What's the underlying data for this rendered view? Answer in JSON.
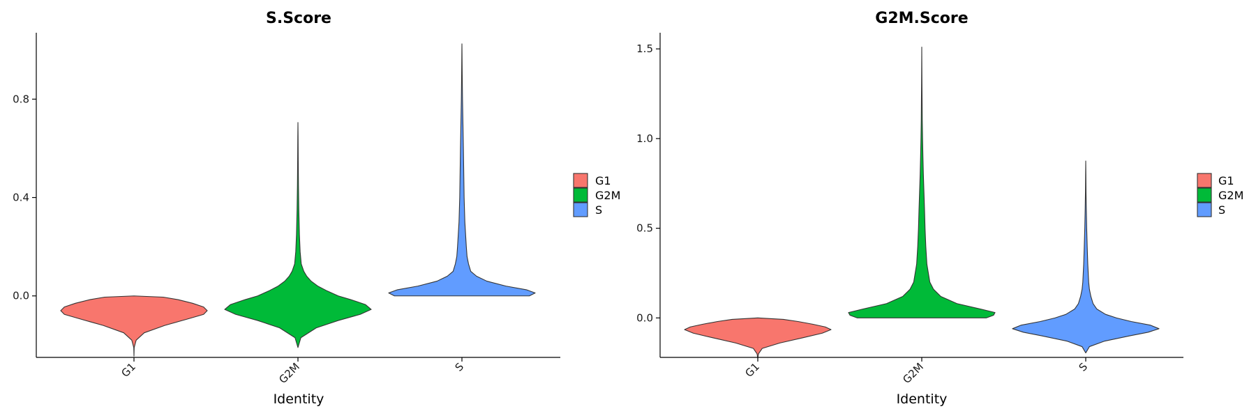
{
  "chart_data": [
    {
      "type": "violin",
      "title": "S.Score",
      "xlabel": "Identity",
      "ylabel": "",
      "ylim": [
        -0.25,
        1.07
      ],
      "yticks": [
        0.0,
        0.4,
        0.8
      ],
      "ytick_labels": [
        "0.0",
        "0.4",
        "0.8"
      ],
      "categories": [
        "G1",
        "G2M",
        "S"
      ],
      "colors": [
        "#F8766D",
        "#00BA38",
        "#619CFF"
      ],
      "legend": {
        "title": "",
        "entries": [
          "G1",
          "G2M",
          "S"
        ],
        "position": "right"
      },
      "violins": [
        {
          "category": "G1",
          "min": -0.245,
          "max": 0.0,
          "profile": [
            [
              -0.245,
              0.0
            ],
            [
              -0.21,
              0.003
            ],
            [
              -0.18,
              0.03
            ],
            [
              -0.15,
              0.14
            ],
            [
              -0.12,
              0.42
            ],
            [
              -0.095,
              0.72
            ],
            [
              -0.075,
              0.95
            ],
            [
              -0.06,
              1.0
            ],
            [
              -0.045,
              0.95
            ],
            [
              -0.03,
              0.8
            ],
            [
              -0.015,
              0.6
            ],
            [
              -0.005,
              0.4
            ],
            [
              0.0,
              0.0
            ]
          ]
        },
        {
          "category": "G2M",
          "min": -0.21,
          "max": 0.705,
          "profile": [
            [
              -0.21,
              0.0
            ],
            [
              -0.17,
              0.04
            ],
            [
              -0.13,
              0.25
            ],
            [
              -0.1,
              0.55
            ],
            [
              -0.075,
              0.85
            ],
            [
              -0.055,
              1.0
            ],
            [
              -0.035,
              0.92
            ],
            [
              -0.015,
              0.72
            ],
            [
              0.0,
              0.55
            ],
            [
              0.02,
              0.4
            ],
            [
              0.04,
              0.27
            ],
            [
              0.06,
              0.18
            ],
            [
              0.08,
              0.12
            ],
            [
              0.1,
              0.08
            ],
            [
              0.13,
              0.045
            ],
            [
              0.18,
              0.03
            ],
            [
              0.25,
              0.02
            ],
            [
              0.35,
              0.012
            ],
            [
              0.45,
              0.007
            ],
            [
              0.55,
              0.004
            ],
            [
              0.65,
              0.002
            ],
            [
              0.705,
              0.0
            ]
          ]
        },
        {
          "category": "S",
          "min": 0.0,
          "max": 1.025,
          "profile": [
            [
              0.0,
              0.92
            ],
            [
              0.012,
              1.0
            ],
            [
              0.025,
              0.88
            ],
            [
              0.04,
              0.6
            ],
            [
              0.06,
              0.34
            ],
            [
              0.08,
              0.2
            ],
            [
              0.1,
              0.12
            ],
            [
              0.13,
              0.09
            ],
            [
              0.16,
              0.07
            ],
            [
              0.2,
              0.06
            ],
            [
              0.25,
              0.05
            ],
            [
              0.3,
              0.04
            ],
            [
              0.4,
              0.03
            ],
            [
              0.5,
              0.025
            ],
            [
              0.6,
              0.02
            ],
            [
              0.7,
              0.014
            ],
            [
              0.8,
              0.008
            ],
            [
              0.9,
              0.004
            ],
            [
              1.0,
              0.001
            ],
            [
              1.025,
              0.0
            ]
          ]
        }
      ]
    },
    {
      "type": "violin",
      "title": "G2M.Score",
      "xlabel": "Identity",
      "ylabel": "",
      "ylim": [
        -0.22,
        1.59
      ],
      "yticks": [
        0.0,
        0.5,
        1.0,
        1.5
      ],
      "ytick_labels": [
        "0.0",
        "0.5",
        "1.0",
        "1.5"
      ],
      "categories": [
        "G1",
        "G2M",
        "S"
      ],
      "colors": [
        "#F8766D",
        "#00BA38",
        "#619CFF"
      ],
      "legend": {
        "title": "",
        "entries": [
          "G1",
          "G2M",
          "S"
        ],
        "position": "right"
      },
      "violins": [
        {
          "category": "G1",
          "min": -0.225,
          "max": 0.0,
          "profile": [
            [
              -0.225,
              0.0
            ],
            [
              -0.2,
              0.01
            ],
            [
              -0.17,
              0.06
            ],
            [
              -0.14,
              0.3
            ],
            [
              -0.11,
              0.62
            ],
            [
              -0.085,
              0.88
            ],
            [
              -0.065,
              1.0
            ],
            [
              -0.05,
              0.92
            ],
            [
              -0.035,
              0.75
            ],
            [
              -0.02,
              0.55
            ],
            [
              -0.008,
              0.35
            ],
            [
              0.0,
              0.0
            ]
          ]
        },
        {
          "category": "G2M",
          "min": 0.0,
          "max": 1.51,
          "profile": [
            [
              0.0,
              0.88
            ],
            [
              0.015,
              0.98
            ],
            [
              0.03,
              1.0
            ],
            [
              0.05,
              0.8
            ],
            [
              0.08,
              0.48
            ],
            [
              0.12,
              0.26
            ],
            [
              0.16,
              0.16
            ],
            [
              0.2,
              0.11
            ],
            [
              0.3,
              0.07
            ],
            [
              0.4,
              0.055
            ],
            [
              0.5,
              0.045
            ],
            [
              0.6,
              0.038
            ],
            [
              0.7,
              0.03
            ],
            [
              0.8,
              0.022
            ],
            [
              0.9,
              0.016
            ],
            [
              1.0,
              0.011
            ],
            [
              1.1,
              0.007
            ],
            [
              1.2,
              0.005
            ],
            [
              1.3,
              0.003
            ],
            [
              1.4,
              0.0015
            ],
            [
              1.51,
              0.0
            ]
          ]
        },
        {
          "category": "S",
          "min": -0.195,
          "max": 0.875,
          "profile": [
            [
              -0.195,
              0.0
            ],
            [
              -0.16,
              0.05
            ],
            [
              -0.13,
              0.25
            ],
            [
              -0.1,
              0.6
            ],
            [
              -0.08,
              0.85
            ],
            [
              -0.06,
              1.0
            ],
            [
              -0.04,
              0.88
            ],
            [
              -0.02,
              0.62
            ],
            [
              0.0,
              0.42
            ],
            [
              0.02,
              0.27
            ],
            [
              0.05,
              0.15
            ],
            [
              0.08,
              0.1
            ],
            [
              0.12,
              0.07
            ],
            [
              0.16,
              0.05
            ],
            [
              0.2,
              0.04
            ],
            [
              0.3,
              0.028
            ],
            [
              0.4,
              0.02
            ],
            [
              0.5,
              0.013
            ],
            [
              0.6,
              0.008
            ],
            [
              0.7,
              0.004
            ],
            [
              0.8,
              0.002
            ],
            [
              0.875,
              0.0
            ]
          ]
        }
      ]
    }
  ]
}
